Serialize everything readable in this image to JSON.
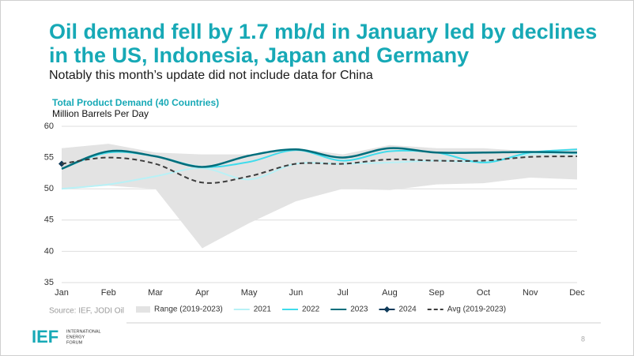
{
  "title_lines": [
    "Oil demand fell by 1.7 mb/d in January led by declines",
    "in the US, Indonesia, Japan and Germany"
  ],
  "subtitle": "Notably this month’s update did not include data for China",
  "chart_data": {
    "type": "line",
    "title": "Total Product Demand (40 Countries)",
    "y_label": "Million Barrels Per Day",
    "source": "Source: IEF, JODI Oil",
    "categories": [
      "Jan",
      "Feb",
      "Mar",
      "Apr",
      "May",
      "Jun",
      "Jul",
      "Aug",
      "Sep",
      "Oct",
      "Nov",
      "Dec"
    ],
    "ylim": [
      35,
      60
    ],
    "yticks": [
      35,
      40,
      45,
      50,
      55,
      60
    ],
    "grid": true,
    "series": [
      {
        "name": "Range (2019-2023)",
        "style": "band",
        "color": "#e3e3e3",
        "low": [
          50,
          50.5,
          50,
          40.5,
          44.5,
          48,
          50,
          49.8,
          50.7,
          50.9,
          51.8,
          51.5
        ],
        "high": [
          56.5,
          57.2,
          55.8,
          55.5,
          55.5,
          56.5,
          55.5,
          57,
          56.5,
          56.5,
          56,
          56.5
        ]
      },
      {
        "name": "2021",
        "color": "#b8f1f6",
        "values": [
          50,
          50.7,
          52,
          53.3,
          51.5,
          54,
          54,
          54.2,
          54.5,
          54.3,
          55.5,
          55.6
        ]
      },
      {
        "name": "2022",
        "color": "#40dcec",
        "values": [
          53.2,
          55.8,
          55.2,
          53.5,
          54.3,
          56.2,
          54.5,
          56,
          55.8,
          54.2,
          55.8,
          56.3
        ]
      },
      {
        "name": "2023",
        "color": "#006e7c",
        "values": [
          53.2,
          56,
          55.2,
          53.5,
          55.3,
          56.3,
          55,
          56.5,
          55.8,
          55.8,
          55.9,
          55.8
        ]
      },
      {
        "name": "2024",
        "color": "#0e3a5a",
        "marker": "diamond",
        "values": [
          54,
          null,
          null,
          null,
          null,
          null,
          null,
          null,
          null,
          null,
          null,
          null
        ]
      },
      {
        "name": "Avg (2019-2023)",
        "color": "#3d3d3d",
        "dashed": true,
        "values": [
          54,
          55,
          54,
          51,
          52,
          54,
          54,
          54.7,
          54.5,
          54.5,
          55.1,
          55.2
        ]
      }
    ]
  },
  "footer": {
    "logo": "IEF",
    "org_lines": [
      "INTERNATIONAL",
      "ENERGY",
      "FORUM"
    ],
    "page": "8"
  }
}
